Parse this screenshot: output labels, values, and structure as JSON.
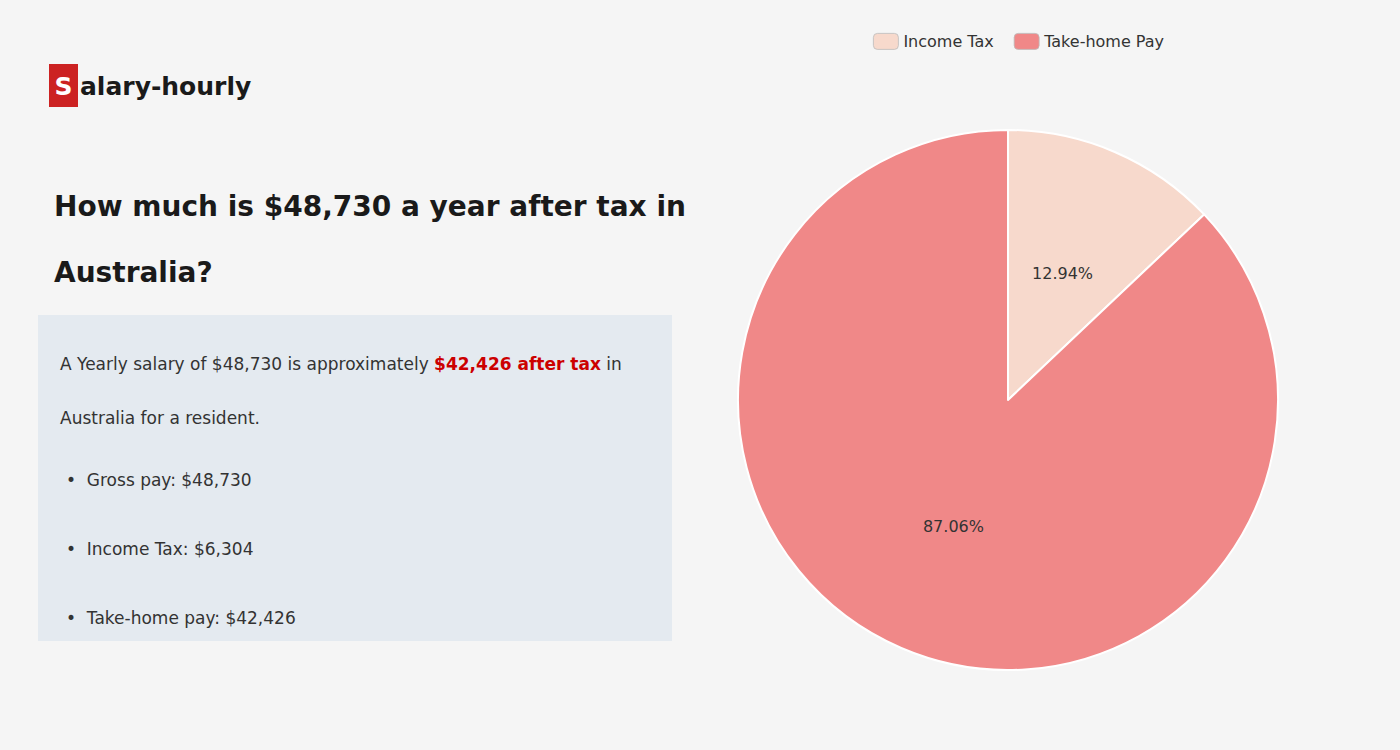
{
  "chart_data": {
    "type": "pie",
    "title": "How much is $48,730 a year after tax in\nAustralia?",
    "categories": [
      "Income Tax",
      "Take-home Pay"
    ],
    "values": [
      12.94,
      87.06
    ],
    "value_labels": [
      "12.94%",
      "87.06%"
    ],
    "colors": [
      "#f7d9cc",
      "#f08888"
    ],
    "data_labels": true,
    "legend": "top",
    "annotations": [
      "S",
      "alary-hourly",
      "A Yearly salary of $48,730 is approximately ",
      "$42,426 after tax",
      " in",
      "Australia for a resident.",
      "•  Gross pay: $48,730",
      "•  Income Tax: $6,304",
      "•  Take-home pay: $42,426"
    ]
  }
}
